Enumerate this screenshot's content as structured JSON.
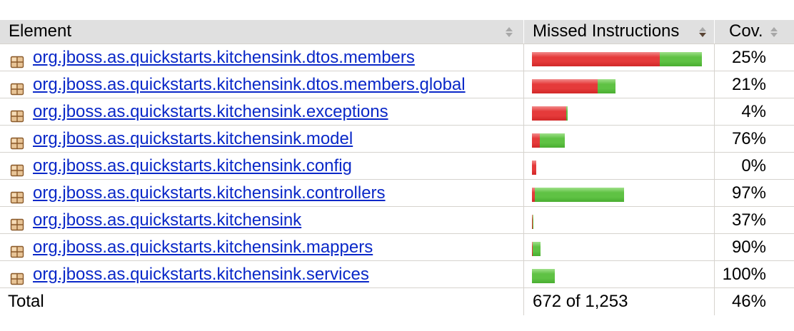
{
  "table": {
    "headers": {
      "element": "Element",
      "missed": "Missed Instructions",
      "cov": "Cov."
    },
    "rows": [
      {
        "name": "org.jboss.as.quickstarts.kitchensink.dtos.members",
        "missed_fraction": 0.75,
        "total_instructions_relative": 1.0,
        "cov": "25%"
      },
      {
        "name": "org.jboss.as.quickstarts.kitchensink.dtos.members.global",
        "missed_fraction": 0.79,
        "total_instructions_relative": 0.49,
        "cov": "21%"
      },
      {
        "name": "org.jboss.as.quickstarts.kitchensink.exceptions",
        "missed_fraction": 0.96,
        "total_instructions_relative": 0.21,
        "cov": "4%"
      },
      {
        "name": "org.jboss.as.quickstarts.kitchensink.model",
        "missed_fraction": 0.24,
        "total_instructions_relative": 0.195,
        "cov": "76%"
      },
      {
        "name": "org.jboss.as.quickstarts.kitchensink.config",
        "missed_fraction": 1.0,
        "total_instructions_relative": 0.025,
        "cov": "0%"
      },
      {
        "name": "org.jboss.as.quickstarts.kitchensink.controllers",
        "missed_fraction": 0.03,
        "total_instructions_relative": 0.54,
        "cov": "97%"
      },
      {
        "name": "org.jboss.as.quickstarts.kitchensink",
        "missed_fraction": 0.63,
        "total_instructions_relative": 0.008,
        "cov": "37%"
      },
      {
        "name": "org.jboss.as.quickstarts.kitchensink.mappers",
        "missed_fraction": 0.1,
        "total_instructions_relative": 0.05,
        "cov": "90%"
      },
      {
        "name": "org.jboss.as.quickstarts.kitchensink.services",
        "missed_fraction": 0.0,
        "total_instructions_relative": 0.135,
        "cov": "100%"
      }
    ],
    "total": {
      "label": "Total",
      "missed": "672 of 1,253",
      "cov": "46%"
    }
  },
  "colors": {
    "missed": "#e53a3a",
    "covered": "#5fc244",
    "link": "#0a28c8",
    "header_bg": "#e0e0e0"
  },
  "icons": {
    "package": "package-icon",
    "sort": "sort-arrows-icon"
  }
}
